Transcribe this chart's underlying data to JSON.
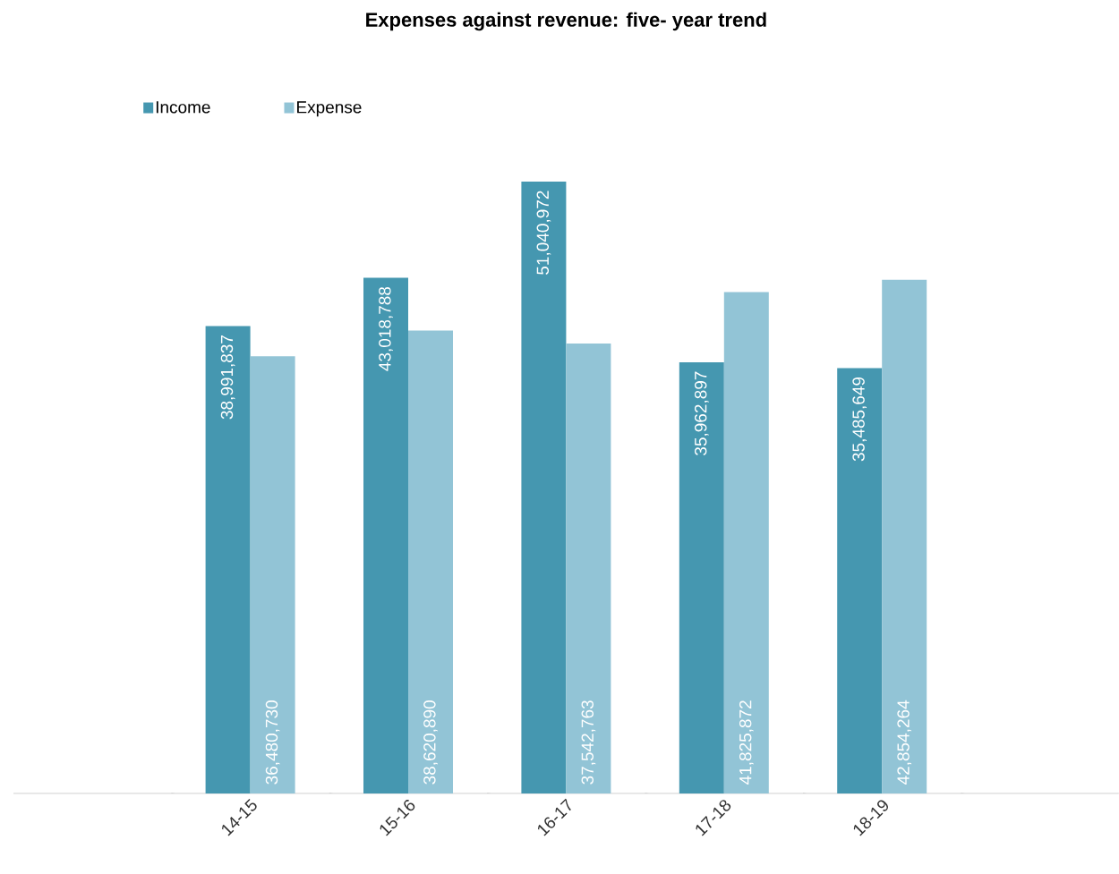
{
  "chart_data": {
    "type": "bar",
    "title": "Expenses against revenue: five- year trend",
    "categories": [
      null,
      "14-15",
      "15-16",
      "16-17",
      "17-18",
      "18-19",
      null
    ],
    "series": [
      {
        "name": "Income",
        "color": "#4597b0",
        "values": [
          null,
          38991837,
          43018788,
          51040972,
          35962897,
          35485649,
          null
        ],
        "value_labels": [
          null,
          "38,991,837",
          "43,018,788",
          "51,040,972",
          "35,962,897",
          "35,485,649",
          null
        ]
      },
      {
        "name": "Expense",
        "color": "#92c4d6",
        "values": [
          null,
          36480730,
          38620890,
          37542763,
          41825872,
          42854264,
          null
        ],
        "value_labels": [
          null,
          "36,480,730",
          "38,620,890",
          "37,542,763",
          "41,825,872",
          "42,854,264",
          null
        ]
      }
    ],
    "legend": "top left"
  }
}
